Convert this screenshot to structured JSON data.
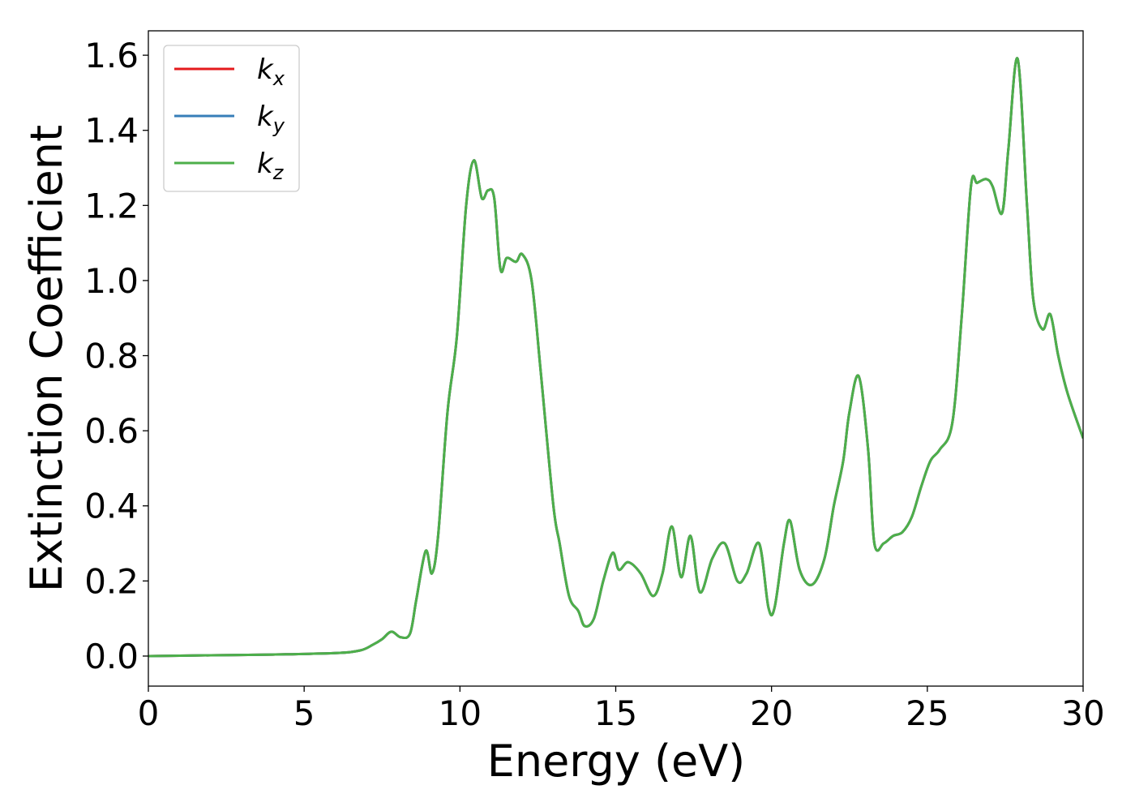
{
  "chart_data": {
    "type": "line",
    "xlabel": "Energy (eV)",
    "ylabel": "Extinction Coefficient",
    "xlim": [
      0,
      30
    ],
    "ylim": [
      -0.08,
      1.665
    ],
    "x_ticks": [
      0,
      5,
      10,
      15,
      20,
      25,
      30
    ],
    "x_tick_labels": [
      "0",
      "5",
      "10",
      "15",
      "20",
      "25",
      "30"
    ],
    "y_ticks": [
      0.0,
      0.2,
      0.4,
      0.6,
      0.8,
      1.0,
      1.2,
      1.4,
      1.6
    ],
    "y_tick_labels": [
      "0.0",
      "0.2",
      "0.4",
      "0.6",
      "0.8",
      "1.0",
      "1.2",
      "1.4",
      "1.6"
    ],
    "grid": false,
    "legend_position": "top-left",
    "series": [
      {
        "name": "kx",
        "label_base": "k",
        "label_sub": "x",
        "color": "#e41a1c"
      },
      {
        "name": "ky",
        "label_base": "k",
        "label_sub": "y",
        "color": "#377eb8"
      },
      {
        "name": "kz",
        "label_base": "k",
        "label_sub": "z",
        "color": "#4daf4a"
      }
    ],
    "x": [
      0,
      2,
      4,
      6,
      6.8,
      7.2,
      7.5,
      7.8,
      8.1,
      8.4,
      8.6,
      8.9,
      9.1,
      9.3,
      9.6,
      9.9,
      10.2,
      10.45,
      10.7,
      10.9,
      11.1,
      11.3,
      11.5,
      11.8,
      12.0,
      12.3,
      12.6,
      13.0,
      13.2,
      13.5,
      13.8,
      14.0,
      14.3,
      14.6,
      14.9,
      15.1,
      15.4,
      15.8,
      16.2,
      16.5,
      16.8,
      17.1,
      17.4,
      17.7,
      18.1,
      18.5,
      18.9,
      19.2,
      19.6,
      19.9,
      20.1,
      20.4,
      20.6,
      20.9,
      21.3,
      21.7,
      22.0,
      22.3,
      22.5,
      22.8,
      23.1,
      23.3,
      23.6,
      23.9,
      24.2,
      24.5,
      24.8,
      25.1,
      25.4,
      25.8,
      26.1,
      26.4,
      26.6,
      26.9,
      27.1,
      27.4,
      27.6,
      27.9,
      28.2,
      28.4,
      28.7,
      28.95,
      29.2,
      29.5,
      30.0
    ],
    "values": [
      0.0,
      0.002,
      0.004,
      0.008,
      0.015,
      0.03,
      0.045,
      0.065,
      0.05,
      0.06,
      0.15,
      0.28,
      0.22,
      0.32,
      0.65,
      0.85,
      1.2,
      1.32,
      1.22,
      1.24,
      1.22,
      1.03,
      1.06,
      1.05,
      1.07,
      1.0,
      0.75,
      0.4,
      0.3,
      0.16,
      0.12,
      0.08,
      0.1,
      0.2,
      0.275,
      0.23,
      0.25,
      0.22,
      0.16,
      0.22,
      0.345,
      0.21,
      0.32,
      0.17,
      0.26,
      0.3,
      0.2,
      0.22,
      0.3,
      0.13,
      0.13,
      0.3,
      0.36,
      0.23,
      0.19,
      0.26,
      0.4,
      0.52,
      0.65,
      0.745,
      0.55,
      0.3,
      0.3,
      0.32,
      0.33,
      0.37,
      0.45,
      0.52,
      0.55,
      0.62,
      0.9,
      1.25,
      1.26,
      1.27,
      1.25,
      1.18,
      1.35,
      1.59,
      1.2,
      0.95,
      0.87,
      0.91,
      0.8,
      0.7,
      0.58
    ]
  }
}
